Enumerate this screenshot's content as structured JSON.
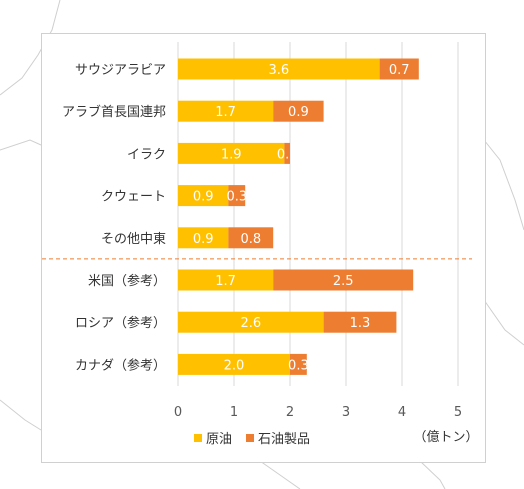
{
  "chart_data": {
    "type": "bar",
    "orientation": "horizontal",
    "stacked": true,
    "categories": [
      "サウジアラビア",
      "アラブ首長国連邦",
      "イラク",
      "クウェート",
      "その他中東",
      "米国（参考）",
      "ロシア（参考）",
      "カナダ（参考）"
    ],
    "series": [
      {
        "name": "原油",
        "color": "#FFC000",
        "values": [
          3.6,
          1.7,
          1.9,
          0.9,
          0.9,
          1.7,
          2.6,
          2.0
        ]
      },
      {
        "name": "石油製品",
        "color": "#ED7D31",
        "values": [
          0.7,
          0.9,
          0.1,
          0.3,
          0.8,
          2.5,
          1.3,
          0.3
        ]
      }
    ],
    "xlim": [
      0,
      5
    ],
    "xticks": [
      "0",
      "1",
      "2",
      "3",
      "4",
      "5"
    ],
    "unit_label": "（億トン）",
    "grid": true,
    "legend_position": "bottom",
    "separator_after_category": "その他中東",
    "separator_color": "#ED7D31"
  }
}
